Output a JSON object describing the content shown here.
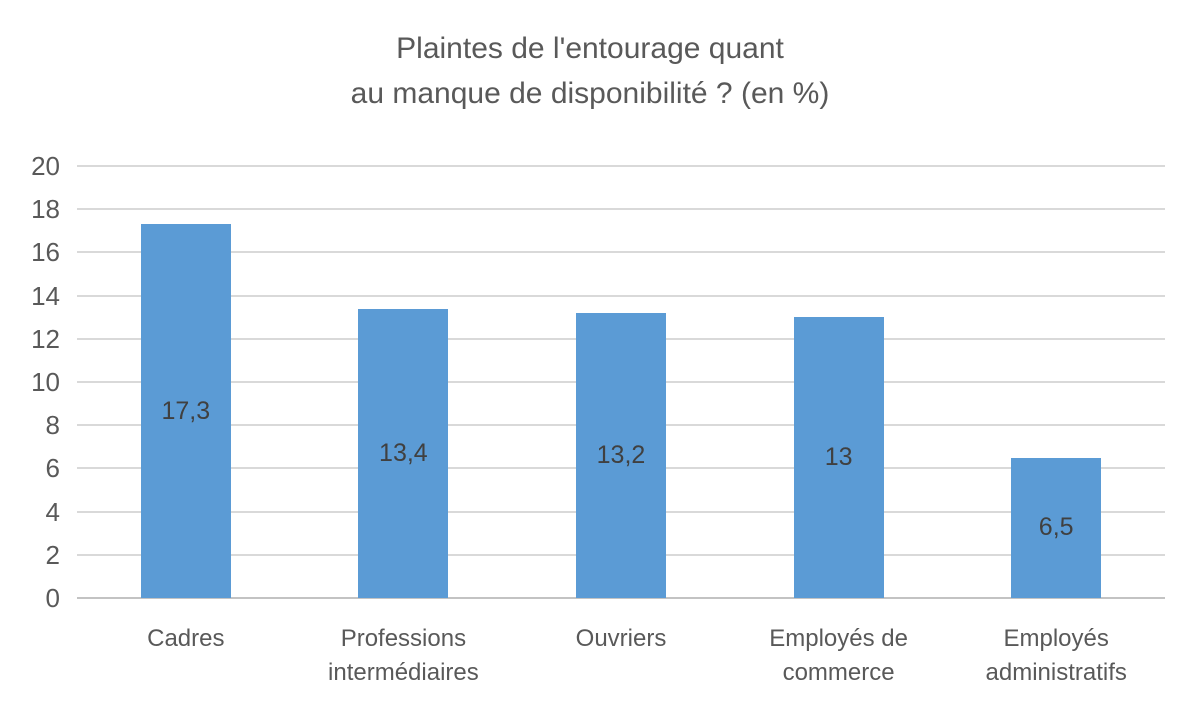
{
  "chart_data": {
    "type": "bar",
    "title_lines": [
      "Plaintes de l'entourage quant",
      "au manque de disponibilité ? (en %)"
    ],
    "categories": [
      "Cadres",
      "Professions intermédiaires",
      "Ouvriers",
      "Employés de commerce",
      "Employés administratifs"
    ],
    "values": [
      17.3,
      13.4,
      13.2,
      13,
      6.5
    ],
    "value_labels": [
      "17,3",
      "13,4",
      "13,2",
      "13",
      "6,5"
    ],
    "xlabel": "",
    "ylabel": "",
    "ylim": [
      0,
      20
    ],
    "ytick_step": 2,
    "yticks": [
      0,
      2,
      4,
      6,
      8,
      10,
      12,
      14,
      16,
      18,
      20
    ],
    "grid": true,
    "legend": "none",
    "colors": {
      "bar": "#5B9BD5",
      "title_text": "#595959",
      "axis_text": "#595959",
      "data_label_text": "#404040",
      "gridline": "#D9D9D9",
      "axis_line": "#C3C3C3",
      "background": "#FFFFFF"
    }
  }
}
